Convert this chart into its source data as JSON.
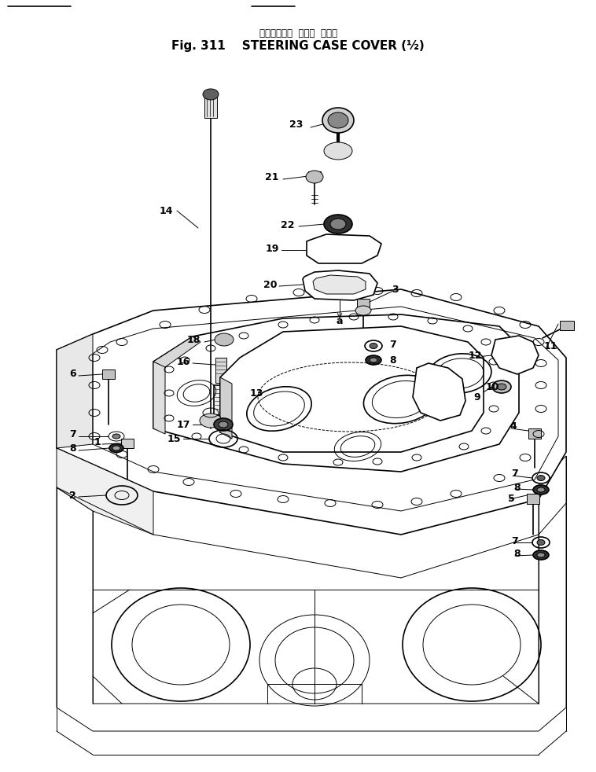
{
  "title_japanese": "ステアリング　ケース　カバー",
  "title_line1": "ステアリング  ケース  カバー",
  "title_line2": "Fig. 311    STEERING CASE COVER (½)",
  "bg_color": "#ffffff",
  "lc": "#000000",
  "fig_width": 7.58,
  "fig_height": 9.82,
  "dpi": 100
}
